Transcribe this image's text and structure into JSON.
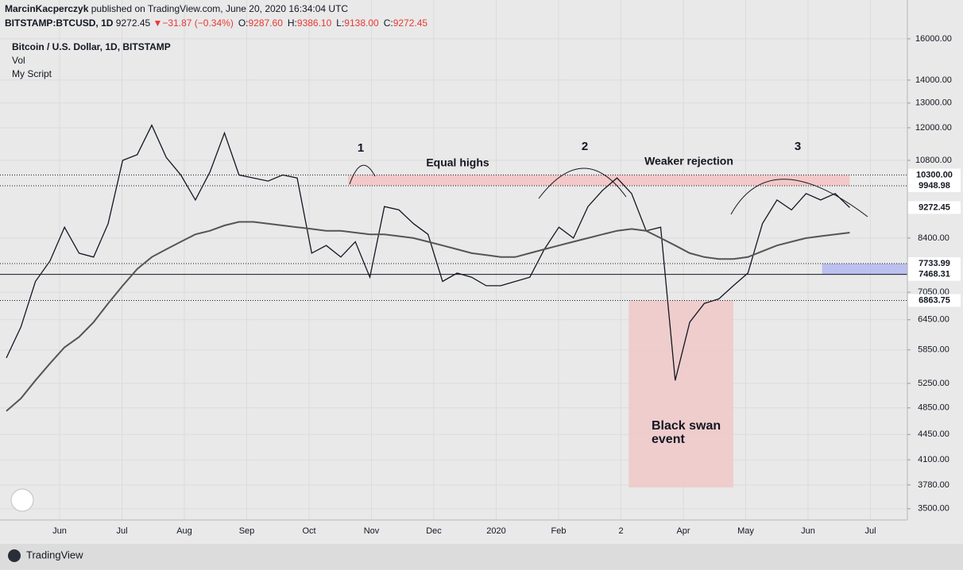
{
  "header": {
    "author": "MarcinKacperczyk",
    "published": "published on TradingView.com, June 20, 2020 16:34:04 UTC",
    "symbol": "BITSTAMP:BTCUSD, 1D",
    "last": "9272.45",
    "arrow": "▼",
    "change": "−31.87 (−0.34%)",
    "ohlc": [
      {
        "label": "O:",
        "value": "9287.60"
      },
      {
        "label": "H:",
        "value": "9386.10"
      },
      {
        "label": "L:",
        "value": "9138.00"
      },
      {
        "label": "C:",
        "value": "9272.45"
      }
    ]
  },
  "legend": [
    "Bitcoin / U.S. Dollar, 1D, BITSTAMP",
    "Vol",
    "My Script"
  ],
  "footer": "TradingView",
  "chart_data": {
    "type": "line",
    "log_scale": true,
    "grid": true,
    "ylim": [
      3375,
      18140
    ],
    "yticks": [
      {
        "value": 16000,
        "label": "16000.00"
      },
      {
        "value": 14000,
        "label": "14000.00"
      },
      {
        "value": 13000,
        "label": "13000.00"
      },
      {
        "value": 12000,
        "label": "12000.00"
      },
      {
        "value": 10800,
        "label": "10800.00"
      },
      {
        "value": 8400,
        "label": "8400.00"
      },
      {
        "value": 7050,
        "label": "7050.00"
      },
      {
        "value": 6450,
        "label": "6450.00"
      },
      {
        "value": 5850,
        "label": "5850.00"
      },
      {
        "value": 5250,
        "label": "5250.00"
      },
      {
        "value": 4850,
        "label": "4850.00"
      },
      {
        "value": 4450,
        "label": "4450.00"
      },
      {
        "value": 4100,
        "label": "4100.00"
      },
      {
        "value": 3780,
        "label": "3780.00"
      },
      {
        "value": 3500,
        "label": "3500.00"
      }
    ],
    "price_labels": [
      {
        "value": 10300,
        "label": "10300.00",
        "line": "dotted"
      },
      {
        "value": 9948.98,
        "label": "9948.98",
        "line": "dotted"
      },
      {
        "value": 9272.45,
        "label": "9272.45",
        "line": "none"
      },
      {
        "value": 7733.99,
        "label": "7733.99",
        "line": "dotted"
      },
      {
        "value": 7468.31,
        "label": "7468.31",
        "line": "solid"
      },
      {
        "value": 6863.75,
        "label": "6863.75",
        "line": "dotted"
      }
    ],
    "x_labels": [
      "Jun",
      "Jul",
      "Aug",
      "Sep",
      "Oct",
      "Nov",
      "Dec",
      "2020",
      "Feb",
      "2",
      "Apr",
      "May",
      "Jun",
      "Jul"
    ],
    "series": [
      {
        "color": "#131722",
        "values": [
          5700,
          6300,
          7300,
          7800,
          8700,
          8000,
          7900,
          8800,
          10800,
          11000,
          12100,
          10900,
          10300,
          9500,
          10400,
          11800,
          10300,
          10200,
          10100,
          10300,
          10200,
          8000,
          8200,
          7900,
          8300,
          7400,
          9300,
          9200,
          8800,
          8500,
          7300,
          7500,
          7400,
          7200,
          7200,
          7300,
          7400,
          8100,
          8700,
          8400,
          9300,
          9800,
          10200,
          9700,
          8600,
          8700,
          5300,
          6400,
          6800,
          6900,
          7200,
          7500,
          8800,
          9500,
          9200,
          9700,
          9500,
          9700,
          9272.45
        ]
      },
      {
        "color": "#555555",
        "values": [
          4800,
          5000,
          5300,
          5600,
          5900,
          6100,
          6400,
          6800,
          7200,
          7600,
          7900,
          8100,
          8300,
          8500,
          8600,
          8750,
          8850,
          8850,
          8800,
          8750,
          8700,
          8650,
          8600,
          8600,
          8550,
          8500,
          8500,
          8450,
          8400,
          8300,
          8200,
          8100,
          8000,
          7950,
          7900,
          7900,
          8000,
          8100,
          8200,
          8300,
          8400,
          8500,
          8600,
          8650,
          8600,
          8400,
          8200,
          8000,
          7900,
          7850,
          7850,
          7900,
          8050,
          8200,
          8300,
          8400,
          8450,
          8500,
          8550
        ]
      }
    ],
    "zones": [
      {
        "low": 9948.98,
        "high": 10300,
        "start": 23.5,
        "end": 58,
        "color": "#f4c2c2"
      },
      {
        "low": 3750,
        "high": 6863.75,
        "start": 42.8,
        "end": 50,
        "color": "#f0c8c8"
      },
      {
        "low": 7468.31,
        "high": 7733.99,
        "start": 56.1,
        "end": 62,
        "color": "#b3b8ee"
      }
    ],
    "annotations": [
      "1",
      "2",
      "3",
      "Equal highs",
      "Weaker rejection",
      "Black swan event"
    ]
  }
}
